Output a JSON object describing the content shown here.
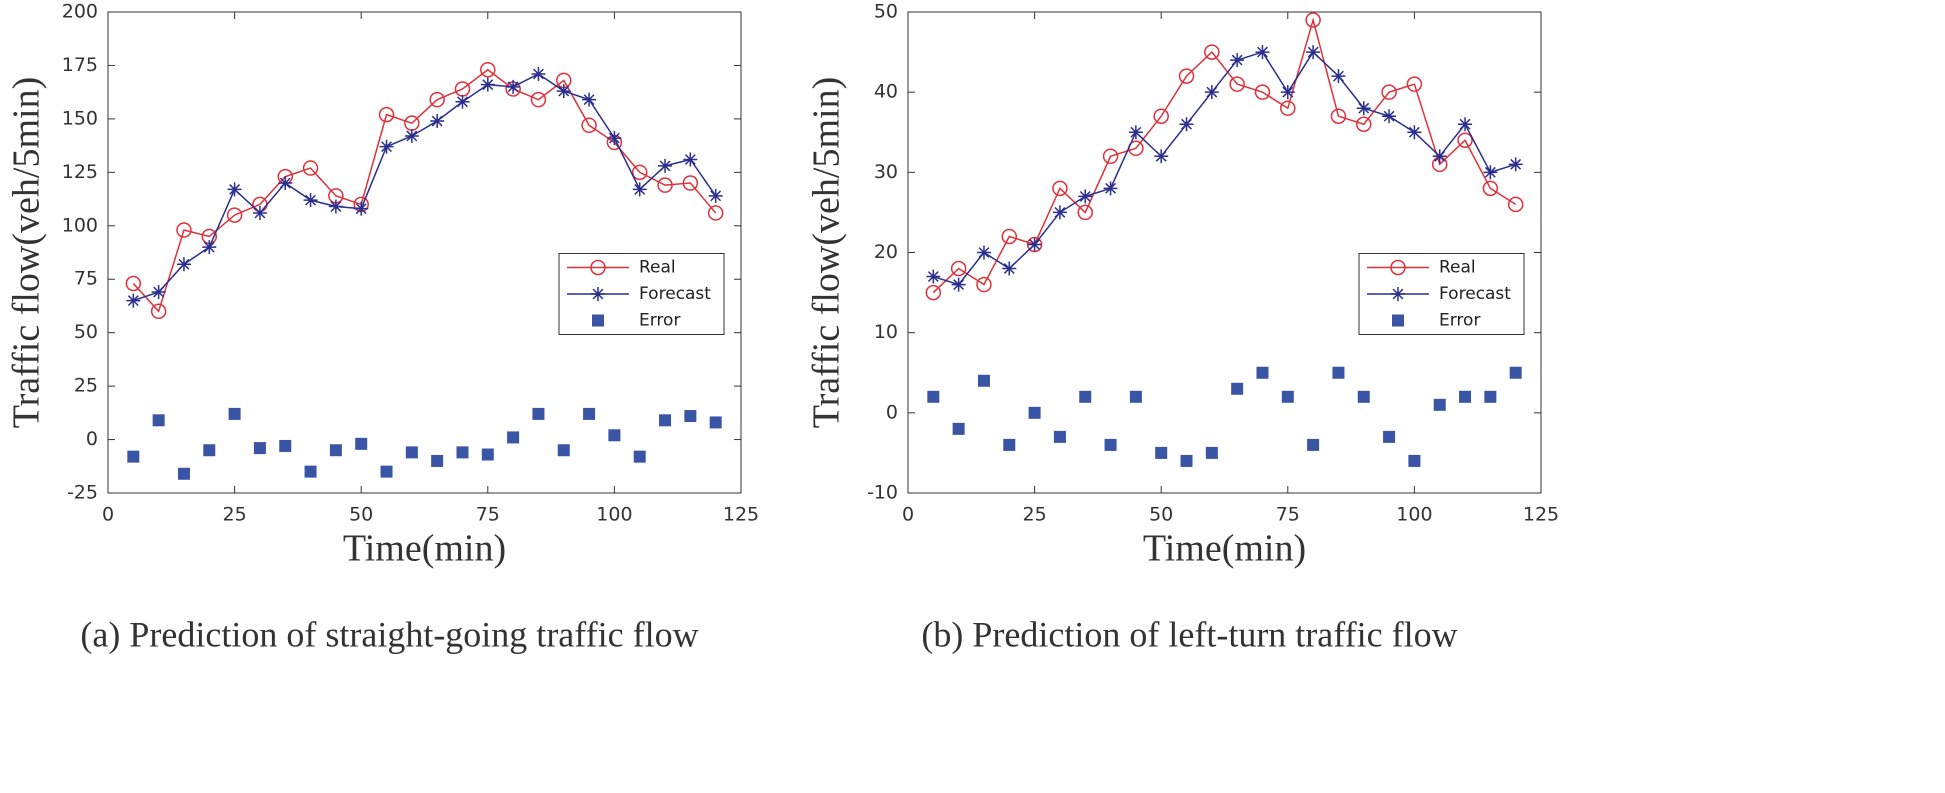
{
  "chart_data": [
    {
      "type": "line",
      "title": "(a) Prediction of straight-going traffic flow",
      "xlabel": "Time(min)",
      "ylabel": "Traffic flow(veh/5min)",
      "x": [
        5,
        10,
        15,
        20,
        25,
        30,
        35,
        40,
        45,
        50,
        55,
        60,
        65,
        70,
        75,
        80,
        85,
        90,
        95,
        100,
        105,
        110,
        115,
        120
      ],
      "series": [
        {
          "name": "Real",
          "color": "#e0303a",
          "marker": "circle",
          "linestyle": "solid",
          "values": [
            73,
            60,
            98,
            95,
            105,
            110,
            123,
            127,
            114,
            110,
            152,
            148,
            159,
            164,
            173,
            164,
            159,
            168,
            147,
            139,
            125,
            119,
            120,
            106
          ]
        },
        {
          "name": "Forecast",
          "color": "#2a2f8f",
          "marker": "star",
          "linestyle": "solid",
          "values": [
            65,
            69,
            82,
            90,
            117,
            106,
            120,
            112,
            109,
            108,
            137,
            142,
            149,
            158,
            166,
            165,
            171,
            163,
            159,
            141,
            117,
            128,
            131,
            114
          ]
        },
        {
          "name": "Error",
          "color": "#3a55a5",
          "marker": "square",
          "linestyle": "none",
          "values": [
            -8,
            9,
            -16,
            -5,
            12,
            -4,
            -3,
            -15,
            -5,
            -2,
            -15,
            -6,
            -10,
            -6,
            -7,
            1,
            12,
            -5,
            12,
            2,
            -8,
            9,
            11,
            8
          ]
        }
      ],
      "xlim": [
        0,
        125
      ],
      "xticks": [
        0,
        25,
        50,
        75,
        100,
        125
      ],
      "ylim": [
        -25,
        200
      ],
      "yticks": [
        -25,
        0,
        25,
        50,
        75,
        100,
        125,
        150,
        175,
        200
      ],
      "legend": "center right"
    },
    {
      "type": "line",
      "title": "(b) Prediction of left-turn traffic flow",
      "xlabel": "Time(min)",
      "ylabel": "Traffic flow(veh/5min)",
      "x": [
        5,
        10,
        15,
        20,
        25,
        30,
        35,
        40,
        45,
        50,
        55,
        60,
        65,
        70,
        75,
        80,
        85,
        90,
        95,
        100,
        105,
        110,
        115,
        120
      ],
      "series": [
        {
          "name": "Real",
          "color": "#e0303a",
          "marker": "circle",
          "linestyle": "solid",
          "values": [
            15,
            18,
            16,
            22,
            21,
            28,
            25,
            32,
            33,
            37,
            42,
            45,
            41,
            40,
            38,
            49,
            37,
            36,
            40,
            41,
            31,
            34,
            28,
            26
          ]
        },
        {
          "name": "Forecast",
          "color": "#2a2f8f",
          "marker": "star",
          "linestyle": "solid",
          "values": [
            17,
            16,
            20,
            18,
            21,
            25,
            27,
            28,
            35,
            32,
            36,
            40,
            44,
            45,
            40,
            45,
            42,
            38,
            37,
            35,
            32,
            36,
            30,
            31
          ]
        },
        {
          "name": "Error",
          "color": "#3a55a5",
          "marker": "square",
          "linestyle": "none",
          "values": [
            2,
            -2,
            4,
            -4,
            0,
            -3,
            2,
            -4,
            2,
            -5,
            -6,
            -5,
            3,
            5,
            2,
            -4,
            5,
            2,
            -3,
            -6,
            1,
            2,
            2,
            5
          ]
        }
      ],
      "xlim": [
        0,
        125
      ],
      "xticks": [
        0,
        25,
        50,
        75,
        100,
        125
      ],
      "ylim": [
        -10,
        50
      ],
      "yticks": [
        -10,
        0,
        10,
        20,
        30,
        40,
        50
      ],
      "legend": "center right"
    }
  ]
}
